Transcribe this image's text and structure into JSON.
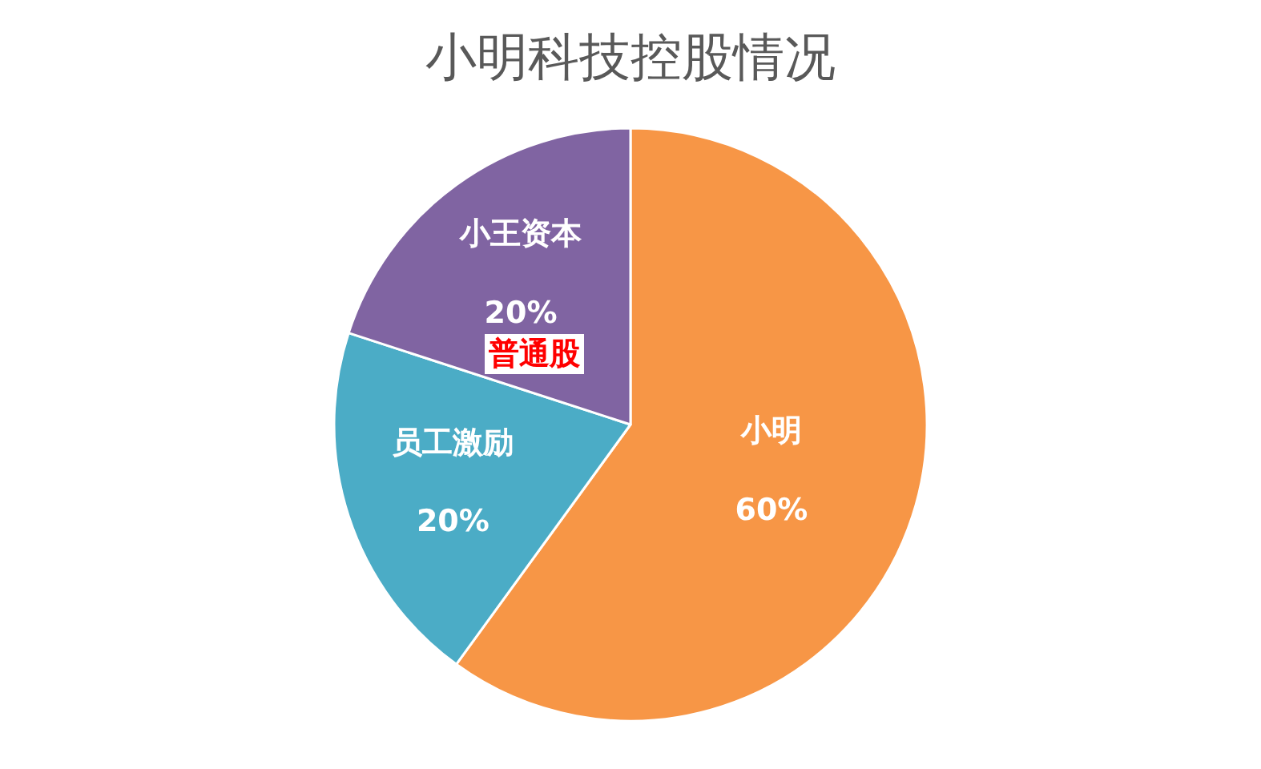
{
  "chart_data": {
    "type": "pie",
    "title": "小明科技控股情况",
    "categories": [
      "小明",
      "员工激励",
      "小王资本"
    ],
    "values": [
      60,
      20,
      20
    ],
    "value_labels": [
      "60%",
      "20%",
      "20%"
    ],
    "colors": [
      "#f79646",
      "#4bacc6",
      "#8064a2"
    ],
    "annotations": [
      {
        "text": "普通股",
        "x": "小王资本"
      }
    ],
    "legend": false
  }
}
